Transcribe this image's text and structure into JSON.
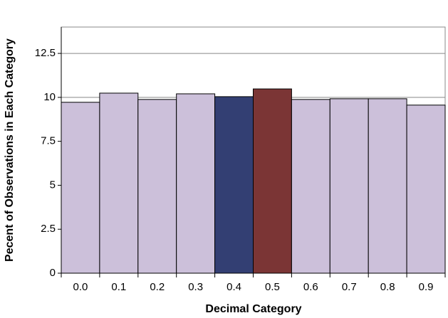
{
  "chart_data": {
    "type": "bar",
    "x_label": "Decimal Category",
    "y_label": "Pecent of Observations in Each Category",
    "categories": [
      "0.0",
      "0.1",
      "0.2",
      "0.3",
      "0.4",
      "0.5",
      "0.6",
      "0.7",
      "0.8",
      "0.9"
    ],
    "values": [
      9.72,
      10.24,
      9.88,
      10.2,
      10.04,
      10.48,
      9.88,
      9.92,
      9.92,
      9.56
    ],
    "colors": [
      "#ccc0da",
      "#ccc0da",
      "#ccc0da",
      "#ccc0da",
      "#333f73",
      "#7b3535",
      "#ccc0da",
      "#ccc0da",
      "#ccc0da",
      "#ccc0da"
    ],
    "ylim": [
      0,
      14
    ],
    "yticks": [
      0,
      2.5,
      5,
      7.5,
      10,
      12.5
    ],
    "grid": true
  }
}
